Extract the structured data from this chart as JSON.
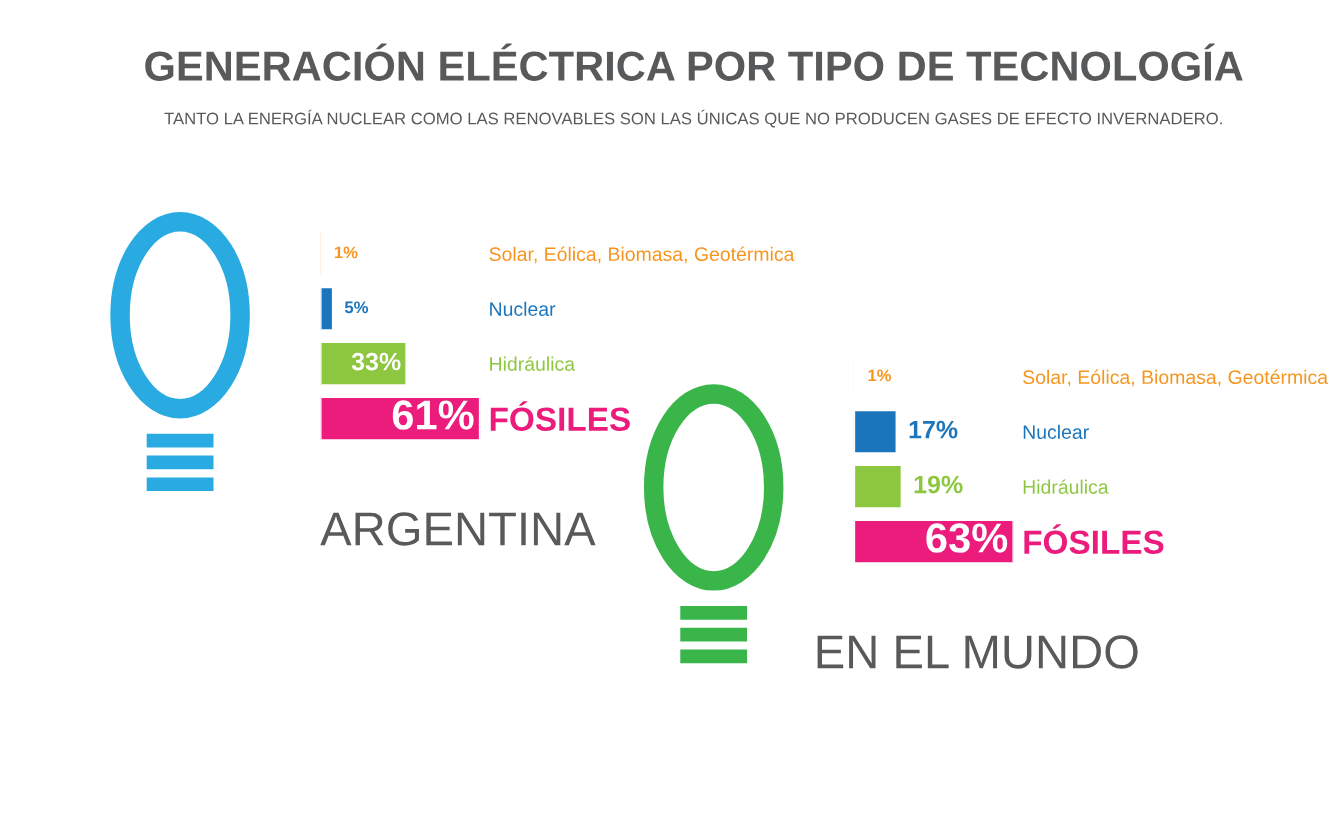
{
  "chart_data": [
    {
      "type": "bar",
      "orientation": "horizontal",
      "title": "GENERACIÓN ELÉCTRICA POR TIPO DE TECNOLOGÍA",
      "subtitle": "TANTO LA ENERGÍA NUCLEAR COMO LAS RENOVABLES SON LAS ÚNICAS QUE NO PRODUCEN GASES DE EFECTO INVERNADERO.",
      "xlabel": "ARGENTINA",
      "categories": [
        "Solar, Eólica, Biomasa, Geotérmica",
        "Nuclear",
        "Hidráulica",
        "FÓSILES"
      ],
      "values": [
        1,
        5,
        33,
        61
      ],
      "value_labels": [
        "1%",
        "5%",
        "33%",
        "61%"
      ],
      "colors": [
        "#f7941d",
        "#1b75bc",
        "#8dc63f",
        "#ec1c7c"
      ]
    },
    {
      "type": "bar",
      "orientation": "horizontal",
      "xlabel": "EN EL MUNDO",
      "categories": [
        "Solar, Eólica, Biomasa, Geotérmica",
        "Nuclear",
        "Hidráulica",
        "FÓSILES"
      ],
      "values": [
        1,
        17,
        19,
        63
      ],
      "value_labels": [
        "1%",
        "17%",
        "19%",
        "63%"
      ],
      "colors": [
        "#f7941d",
        "#1b75bc",
        "#8dc63f",
        "#ec1c7c"
      ]
    }
  ]
}
